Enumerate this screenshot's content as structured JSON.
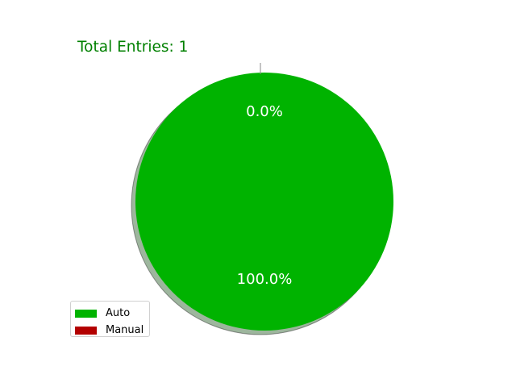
{
  "chart_data": {
    "type": "pie",
    "title": "Total Entries: 1",
    "title_color": "#008000",
    "slices": [
      {
        "label": "Auto",
        "value": 1,
        "percent_label": "100.0%",
        "color": "#00b300"
      },
      {
        "label": "Manual",
        "value": 0,
        "percent_label": "0.0%",
        "color": "#b30000"
      }
    ],
    "shadow": true,
    "legend_placement": "lower-left"
  }
}
